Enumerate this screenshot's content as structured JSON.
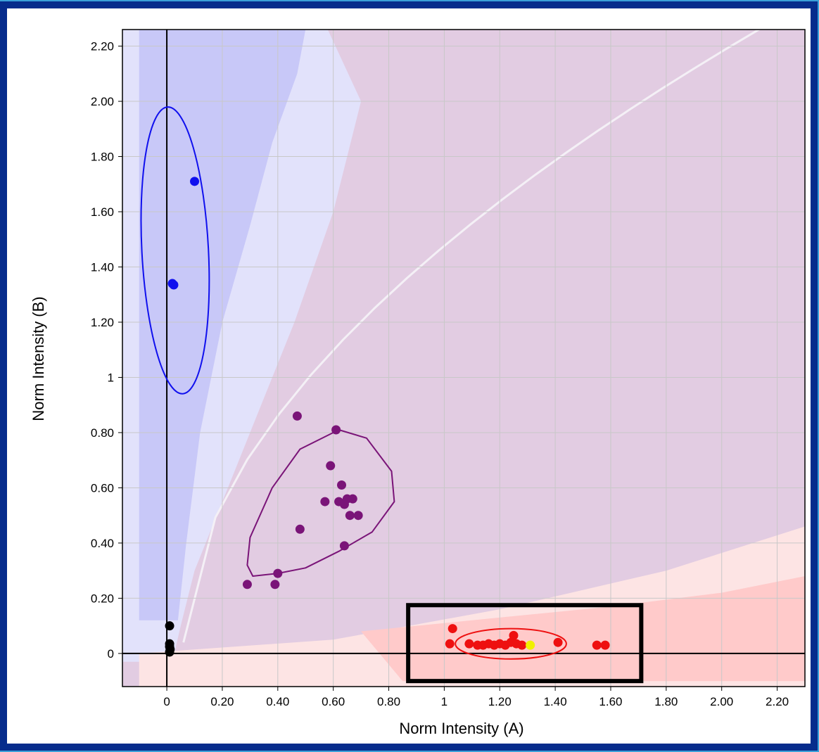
{
  "colors": {
    "blue_cluster": "#1010ee",
    "purple_cluster": "#7a1478",
    "red_cluster": "#ee1010",
    "black_cluster": "#000000",
    "highlight_point": "#f0f000",
    "blue_region": "#c8c8f8",
    "blue_region_light": "#e2e2fb",
    "purple_region": "#e2cce2",
    "red_region": "#ffcaca",
    "red_region_light": "#fde4e4",
    "border": "#062c8c",
    "selection_box": "#000000"
  },
  "chart_data": {
    "type": "scatter",
    "xlabel": "Norm Intensity (A)",
    "ylabel": "Norm Intensity (B)",
    "xlim": [
      -0.16,
      2.3
    ],
    "ylim": [
      -0.12,
      2.26
    ],
    "grid": true,
    "x_ticks": [
      0,
      0.2,
      0.4,
      0.6,
      0.8,
      1,
      1.2,
      1.4,
      1.6,
      1.8,
      2.0,
      2.2
    ],
    "x_tick_labels": [
      "0",
      "0.20",
      "0.40",
      "0.60",
      "0.80",
      "1",
      "1.20",
      "1.40",
      "1.60",
      "1.80",
      "2.00",
      "2.20"
    ],
    "y_ticks": [
      0,
      0.2,
      0.4,
      0.6,
      0.8,
      1,
      1.2,
      1.4,
      1.6,
      1.8,
      2.0,
      2.2
    ],
    "y_tick_labels": [
      "0",
      "0.20",
      "0.40",
      "0.60",
      "0.80",
      "1",
      "1.20",
      "1.40",
      "1.60",
      "1.80",
      "2.00",
      "2.20"
    ],
    "series": [
      {
        "color_key": "blue_cluster",
        "points": [
          [
            0.1,
            1.71
          ],
          [
            0.02,
            1.34
          ],
          [
            0.025,
            1.335
          ]
        ],
        "ellipse": {
          "cx": 0.03,
          "cy": 1.46,
          "rx": 0.12,
          "ry": 0.52,
          "angle_deg": -3
        }
      },
      {
        "color_key": "purple_cluster",
        "points": [
          [
            0.47,
            0.86
          ],
          [
            0.61,
            0.81
          ],
          [
            0.59,
            0.68
          ],
          [
            0.63,
            0.61
          ],
          [
            0.57,
            0.55
          ],
          [
            0.62,
            0.55
          ],
          [
            0.64,
            0.54
          ],
          [
            0.65,
            0.56
          ],
          [
            0.67,
            0.56
          ],
          [
            0.66,
            0.5
          ],
          [
            0.69,
            0.5
          ],
          [
            0.48,
            0.45
          ],
          [
            0.64,
            0.39
          ],
          [
            0.4,
            0.29
          ],
          [
            0.29,
            0.25
          ],
          [
            0.39,
            0.25
          ]
        ]
      },
      {
        "color_key": "red_cluster",
        "points": [
          [
            1.03,
            0.09
          ],
          [
            1.02,
            0.035
          ],
          [
            1.09,
            0.035
          ],
          [
            1.12,
            0.03
          ],
          [
            1.14,
            0.03
          ],
          [
            1.16,
            0.035
          ],
          [
            1.18,
            0.03
          ],
          [
            1.2,
            0.035
          ],
          [
            1.22,
            0.03
          ],
          [
            1.24,
            0.04
          ],
          [
            1.25,
            0.065
          ],
          [
            1.26,
            0.035
          ],
          [
            1.28,
            0.03
          ],
          [
            1.41,
            0.04
          ],
          [
            1.55,
            0.03
          ],
          [
            1.58,
            0.03
          ]
        ],
        "ellipse": {
          "cx": 1.24,
          "cy": 0.035,
          "rx": 0.2,
          "ry": 0.055,
          "angle_deg": 0
        }
      },
      {
        "color_key": "black_cluster",
        "points": [
          [
            0.01,
            0.1
          ],
          [
            0.01,
            0.035
          ],
          [
            0.01,
            0.025
          ],
          [
            0.012,
            0.015
          ],
          [
            0.01,
            0.005
          ]
        ]
      },
      {
        "color_key": "highlight_point",
        "points": [
          [
            1.31,
            0.03
          ]
        ]
      }
    ],
    "selection_box": {
      "x0": 0.87,
      "x1": 1.71,
      "y0": -0.1,
      "y1": 0.175
    }
  }
}
